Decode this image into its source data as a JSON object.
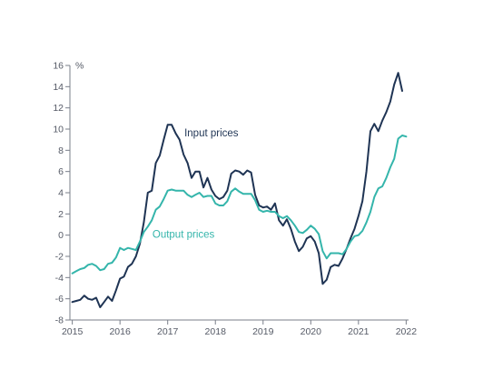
{
  "chart_data": {
    "type": "line",
    "title": "",
    "xlabel": "",
    "ylabel": "%",
    "ylim": [
      -8,
      16
    ],
    "yticks": [
      -8,
      -6,
      -4,
      -2,
      0,
      2,
      4,
      6,
      8,
      10,
      12,
      14,
      16
    ],
    "xlim": [
      2014.95,
      2022.05
    ],
    "xticks": [
      2015,
      2016,
      2017,
      2018,
      2019,
      2020,
      2021,
      2022
    ],
    "xtick_labels": [
      "2015",
      "2016",
      "2017",
      "2018",
      "2019",
      "2020",
      "2021",
      "2022"
    ],
    "grid": false,
    "legend": "none",
    "series": [
      {
        "name": "Input prices",
        "color": "#1f3454",
        "points": [
          [
            2015.0,
            -6.3
          ],
          [
            2015.083,
            -6.2
          ],
          [
            2015.167,
            -6.1
          ],
          [
            2015.25,
            -5.7
          ],
          [
            2015.333,
            -6.0
          ],
          [
            2015.417,
            -6.1
          ],
          [
            2015.5,
            -5.9
          ],
          [
            2015.583,
            -6.8
          ],
          [
            2015.667,
            -6.3
          ],
          [
            2015.75,
            -5.8
          ],
          [
            2015.833,
            -6.2
          ],
          [
            2015.917,
            -5.2
          ],
          [
            2016.0,
            -4.1
          ],
          [
            2016.083,
            -3.9
          ],
          [
            2016.167,
            -3.0
          ],
          [
            2016.25,
            -2.7
          ],
          [
            2016.333,
            -2.0
          ],
          [
            2016.417,
            -0.8
          ],
          [
            2016.5,
            1.2
          ],
          [
            2016.583,
            4.0
          ],
          [
            2016.667,
            4.2
          ],
          [
            2016.75,
            6.8
          ],
          [
            2016.833,
            7.5
          ],
          [
            2016.917,
            9.0
          ],
          [
            2017.0,
            10.4
          ],
          [
            2017.083,
            10.4
          ],
          [
            2017.167,
            9.6
          ],
          [
            2017.25,
            9.0
          ],
          [
            2017.333,
            7.6
          ],
          [
            2017.417,
            6.8
          ],
          [
            2017.5,
            5.4
          ],
          [
            2017.583,
            6.0
          ],
          [
            2017.667,
            6.0
          ],
          [
            2017.75,
            4.5
          ],
          [
            2017.833,
            5.4
          ],
          [
            2017.917,
            4.3
          ],
          [
            2018.0,
            3.7
          ],
          [
            2018.083,
            3.4
          ],
          [
            2018.167,
            3.6
          ],
          [
            2018.25,
            4.2
          ],
          [
            2018.333,
            5.8
          ],
          [
            2018.417,
            6.1
          ],
          [
            2018.5,
            6.0
          ],
          [
            2018.583,
            5.7
          ],
          [
            2018.667,
            6.1
          ],
          [
            2018.75,
            5.9
          ],
          [
            2018.833,
            3.8
          ],
          [
            2018.917,
            2.8
          ],
          [
            2019.0,
            2.6
          ],
          [
            2019.083,
            2.7
          ],
          [
            2019.167,
            2.4
          ],
          [
            2019.25,
            3.0
          ],
          [
            2019.333,
            1.4
          ],
          [
            2019.417,
            0.9
          ],
          [
            2019.5,
            1.5
          ],
          [
            2019.583,
            0.6
          ],
          [
            2019.667,
            -0.6
          ],
          [
            2019.75,
            -1.5
          ],
          [
            2019.833,
            -1.1
          ],
          [
            2019.917,
            -0.3
          ],
          [
            2020.0,
            -0.1
          ],
          [
            2020.083,
            -0.6
          ],
          [
            2020.167,
            -1.7
          ],
          [
            2020.25,
            -4.6
          ],
          [
            2020.333,
            -4.2
          ],
          [
            2020.417,
            -3.0
          ],
          [
            2020.5,
            -2.8
          ],
          [
            2020.583,
            -2.9
          ],
          [
            2020.667,
            -2.2
          ],
          [
            2020.75,
            -1.3
          ],
          [
            2020.833,
            -0.3
          ],
          [
            2020.917,
            0.6
          ],
          [
            2021.0,
            1.8
          ],
          [
            2021.083,
            3.2
          ],
          [
            2021.167,
            6.0
          ],
          [
            2021.25,
            9.8
          ],
          [
            2021.333,
            10.5
          ],
          [
            2021.417,
            9.8
          ],
          [
            2021.5,
            10.8
          ],
          [
            2021.583,
            11.6
          ],
          [
            2021.667,
            12.6
          ],
          [
            2021.75,
            14.2
          ],
          [
            2021.833,
            15.3
          ],
          [
            2021.917,
            13.6
          ]
        ]
      },
      {
        "name": "Output prices",
        "color": "#34b5ab",
        "points": [
          [
            2015.0,
            -3.6
          ],
          [
            2015.083,
            -3.4
          ],
          [
            2015.167,
            -3.2
          ],
          [
            2015.25,
            -3.1
          ],
          [
            2015.333,
            -2.8
          ],
          [
            2015.417,
            -2.7
          ],
          [
            2015.5,
            -2.9
          ],
          [
            2015.583,
            -3.3
          ],
          [
            2015.667,
            -3.2
          ],
          [
            2015.75,
            -2.7
          ],
          [
            2015.833,
            -2.6
          ],
          [
            2015.917,
            -2.1
          ],
          [
            2016.0,
            -1.2
          ],
          [
            2016.083,
            -1.4
          ],
          [
            2016.167,
            -1.2
          ],
          [
            2016.25,
            -1.3
          ],
          [
            2016.333,
            -1.4
          ],
          [
            2016.417,
            -0.6
          ],
          [
            2016.5,
            0.3
          ],
          [
            2016.583,
            0.8
          ],
          [
            2016.667,
            1.4
          ],
          [
            2016.75,
            2.4
          ],
          [
            2016.833,
            2.7
          ],
          [
            2016.917,
            3.4
          ],
          [
            2017.0,
            4.2
          ],
          [
            2017.083,
            4.3
          ],
          [
            2017.167,
            4.2
          ],
          [
            2017.25,
            4.2
          ],
          [
            2017.333,
            4.2
          ],
          [
            2017.417,
            3.8
          ],
          [
            2017.5,
            3.6
          ],
          [
            2017.583,
            3.8
          ],
          [
            2017.667,
            4.0
          ],
          [
            2017.75,
            3.6
          ],
          [
            2017.833,
            3.7
          ],
          [
            2017.917,
            3.7
          ],
          [
            2018.0,
            3.0
          ],
          [
            2018.083,
            2.8
          ],
          [
            2018.167,
            2.8
          ],
          [
            2018.25,
            3.2
          ],
          [
            2018.333,
            4.1
          ],
          [
            2018.417,
            4.4
          ],
          [
            2018.5,
            4.1
          ],
          [
            2018.583,
            3.9
          ],
          [
            2018.667,
            3.9
          ],
          [
            2018.75,
            3.9
          ],
          [
            2018.833,
            3.3
          ],
          [
            2018.917,
            2.4
          ],
          [
            2019.0,
            2.2
          ],
          [
            2019.083,
            2.3
          ],
          [
            2019.167,
            2.2
          ],
          [
            2019.25,
            2.2
          ],
          [
            2019.333,
            1.8
          ],
          [
            2019.417,
            1.6
          ],
          [
            2019.5,
            1.8
          ],
          [
            2019.583,
            1.4
          ],
          [
            2019.667,
            0.9
          ],
          [
            2019.75,
            0.3
          ],
          [
            2019.833,
            0.2
          ],
          [
            2019.917,
            0.5
          ],
          [
            2020.0,
            0.9
          ],
          [
            2020.083,
            0.6
          ],
          [
            2020.167,
            0.1
          ],
          [
            2020.25,
            -1.5
          ],
          [
            2020.333,
            -2.2
          ],
          [
            2020.417,
            -1.7
          ],
          [
            2020.5,
            -1.7
          ],
          [
            2020.583,
            -1.7
          ],
          [
            2020.667,
            -1.8
          ],
          [
            2020.75,
            -1.3
          ],
          [
            2020.833,
            -0.6
          ],
          [
            2020.917,
            -0.1
          ],
          [
            2021.0,
            0.0
          ],
          [
            2021.083,
            0.4
          ],
          [
            2021.167,
            1.2
          ],
          [
            2021.25,
            2.2
          ],
          [
            2021.333,
            3.6
          ],
          [
            2021.417,
            4.4
          ],
          [
            2021.5,
            4.6
          ],
          [
            2021.583,
            5.4
          ],
          [
            2021.667,
            6.4
          ],
          [
            2021.75,
            7.2
          ],
          [
            2021.833,
            9.1
          ],
          [
            2021.917,
            9.4
          ],
          [
            2022.0,
            9.3
          ]
        ]
      }
    ],
    "annotations": [
      {
        "text": "Input prices",
        "x": 2017.35,
        "y": 9.3,
        "color": "#1f3454"
      },
      {
        "text": "Output prices",
        "x": 2016.68,
        "y": -0.25,
        "color": "#34b5ab"
      }
    ],
    "axis_color": "#7a7f8a"
  }
}
